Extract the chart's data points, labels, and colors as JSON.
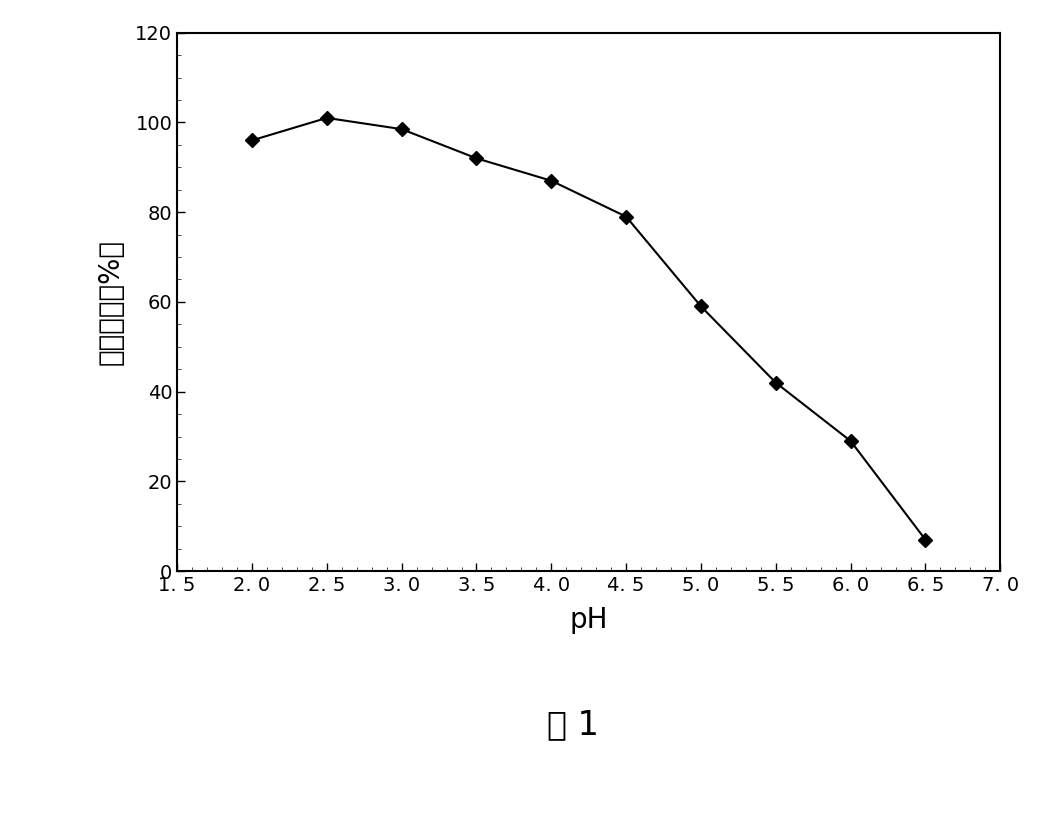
{
  "x": [
    2.0,
    2.5,
    3.0,
    3.5,
    4.0,
    4.5,
    5.0,
    5.5,
    6.0,
    6.5
  ],
  "y": [
    96,
    101,
    98.5,
    92,
    87,
    79,
    59,
    42,
    29,
    7
  ],
  "xlim": [
    1.5,
    7.0
  ],
  "ylim": [
    0,
    120
  ],
  "xticks": [
    1.5,
    2.0,
    2.5,
    3.0,
    3.5,
    4.0,
    4.5,
    5.0,
    5.5,
    6.0,
    6.5,
    7.0
  ],
  "xtick_labels": [
    "1. 5",
    "2. 0",
    "2. 5",
    "3. 0",
    "3. 5",
    "4. 0",
    "4. 5",
    "5. 0",
    "5. 5",
    "6. 0",
    "6. 5",
    "7. 0"
  ],
  "yticks": [
    0,
    20,
    40,
    60,
    80,
    100,
    120
  ],
  "ytick_labels": [
    "0",
    "20",
    "40",
    "60",
    "80",
    "100",
    "120"
  ],
  "xlabel": "pH",
  "ylabel_chars": [
    "相对酶活（%）"
  ],
  "caption": "图 1",
  "line_color": "#000000",
  "marker": "D",
  "marker_size": 7,
  "marker_color": "#000000",
  "line_width": 1.5,
  "background_color": "#ffffff",
  "plot_bg_color": "#ffffff",
  "xlabel_fontsize": 20,
  "ylabel_fontsize": 20,
  "tick_fontsize": 14,
  "caption_fontsize": 24
}
